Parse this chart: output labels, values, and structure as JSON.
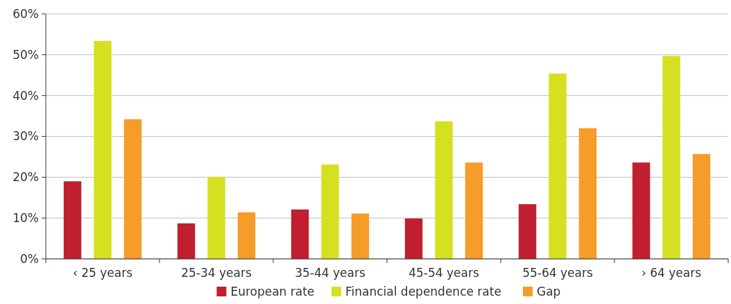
{
  "chart_data": {
    "type": "bar",
    "categories": [
      "‹ 25 years",
      "25-34 years",
      "35-44 years",
      "45-54 years",
      "55-64 years",
      "› 64 years"
    ],
    "series": [
      {
        "name": "European rate",
        "color": "#c01f2f",
        "values": [
          19.0,
          8.7,
          12.1,
          9.9,
          13.4,
          23.6
        ]
      },
      {
        "name": "Financial dependence rate",
        "color": "#d5e021",
        "values": [
          53.4,
          20.1,
          23.1,
          33.7,
          45.4,
          49.7
        ]
      },
      {
        "name": "Gap",
        "color": "#f59c2a",
        "values": [
          34.2,
          11.4,
          11.1,
          23.6,
          32.0,
          25.7
        ]
      }
    ],
    "ylim": [
      0,
      60
    ],
    "yticks": [
      {
        "value": 0,
        "label": "0%"
      },
      {
        "value": 10,
        "label": "10%"
      },
      {
        "value": 20,
        "label": "20%"
      },
      {
        "value": 30,
        "label": "30%"
      },
      {
        "value": 40,
        "label": "40%"
      },
      {
        "value": 50,
        "label": "50%"
      },
      {
        "value": 60,
        "label": "60%"
      }
    ],
    "grid": "y",
    "legend": "bottom"
  }
}
